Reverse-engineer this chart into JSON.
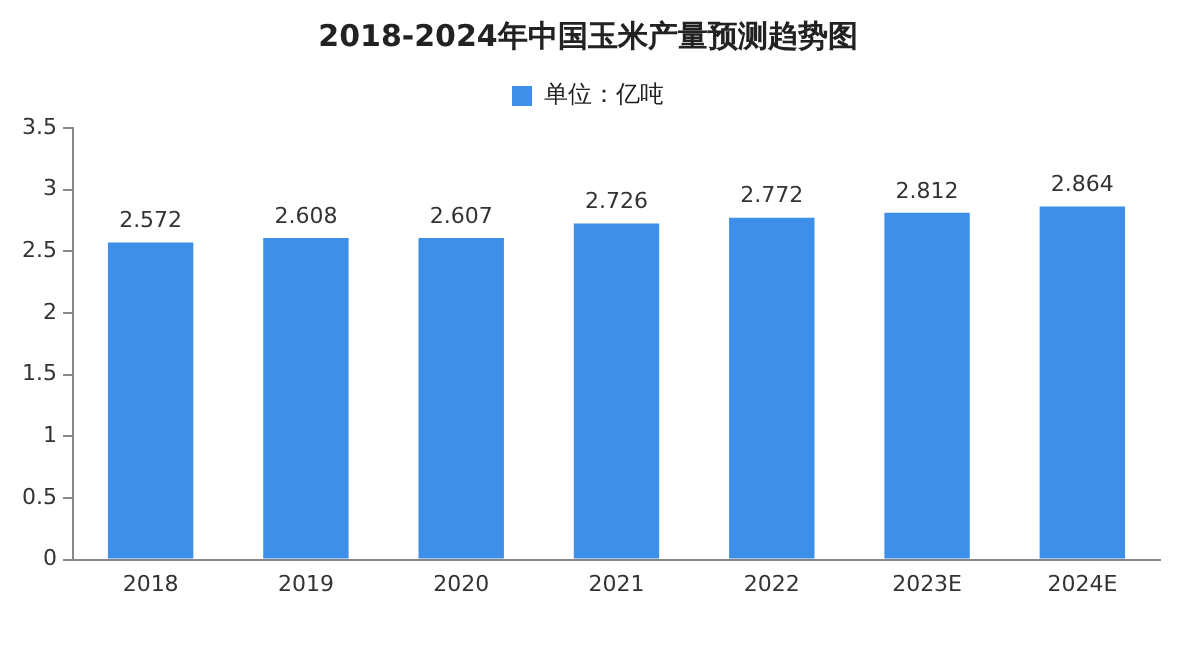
{
  "chart_data": {
    "type": "bar",
    "title": "2018-2024年中国玉米产量预测趋势图",
    "categories": [
      "2018",
      "2019",
      "2020",
      "2021",
      "2022",
      "2023E",
      "2024E"
    ],
    "series": [
      {
        "name": "单位：亿吨",
        "color": "#3d8fe8",
        "values": [
          2.572,
          2.608,
          2.607,
          2.726,
          2.772,
          2.812,
          2.864
        ]
      }
    ],
    "ylim": [
      0,
      3.5
    ],
    "yticks": [
      0,
      0.5,
      1,
      1.5,
      2,
      2.5,
      3,
      3.5
    ],
    "grid": false,
    "legend": "top",
    "data_labels": true
  }
}
